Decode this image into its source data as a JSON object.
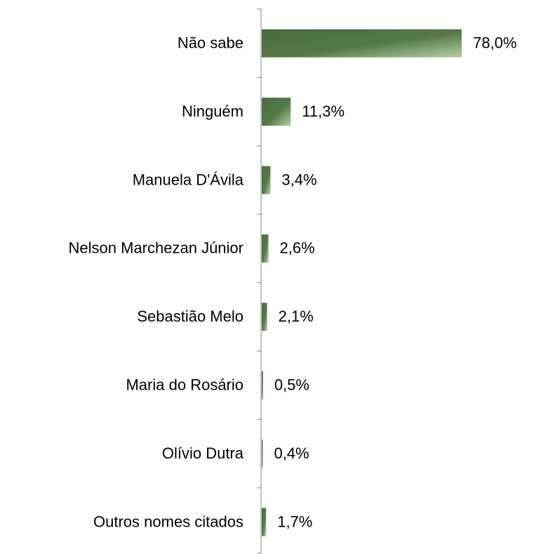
{
  "chart_data": {
    "type": "bar",
    "orientation": "horizontal",
    "categories": [
      "Não sabe",
      "Ninguém",
      "Manuela D'Ávila",
      "Nelson Marchezan Júnior",
      "Sebastião Melo",
      "Maria do Rosário",
      "Olívio Dutra",
      "Outros nomes citados"
    ],
    "values": [
      78.0,
      11.3,
      3.4,
      2.6,
      2.1,
      0.5,
      0.4,
      1.7
    ],
    "value_labels": [
      "78,0%",
      "11,3%",
      "3,4%",
      "2,6%",
      "2,1%",
      "0,5%",
      "0,4%",
      "1,7%"
    ],
    "color": "#4f7142"
  }
}
